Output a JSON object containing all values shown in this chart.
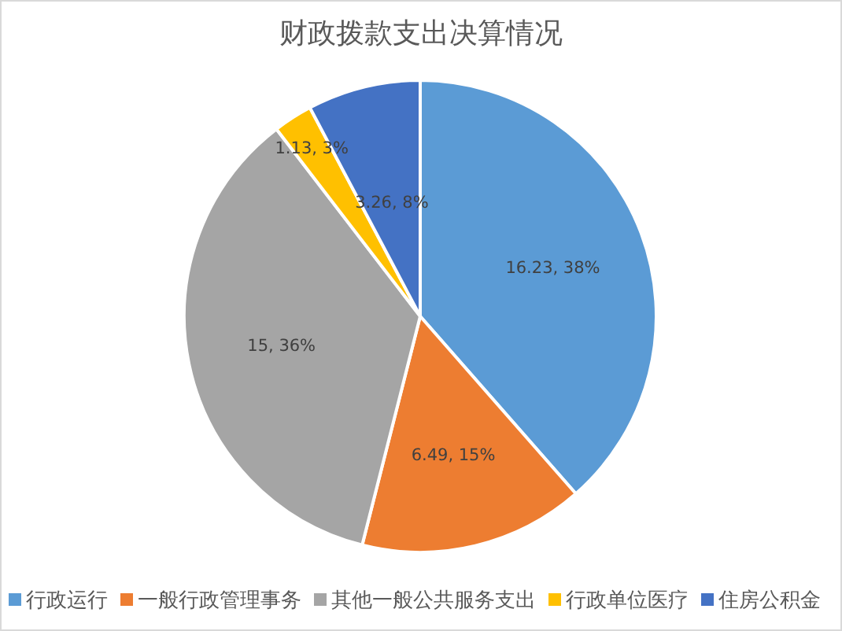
{
  "chart_data": {
    "type": "pie",
    "title": "财政拨款支出决算情况",
    "categories": [
      "行政运行",
      "一般行政管理事务",
      "其他一般公共服务支出",
      "行政单位医疗",
      "住房公积金"
    ],
    "values": [
      16.23,
      6.49,
      15,
      1.13,
      3.26
    ],
    "colors": [
      "#5b9bd5",
      "#ed7d31",
      "#a5a5a5",
      "#ffc000",
      "#4472c4"
    ],
    "value_labels": [
      "16.23, 38%",
      "6.49, 15%",
      "15, 36%",
      "1.13, 3%",
      "3.26, 8%"
    ],
    "legend": "bottom"
  }
}
